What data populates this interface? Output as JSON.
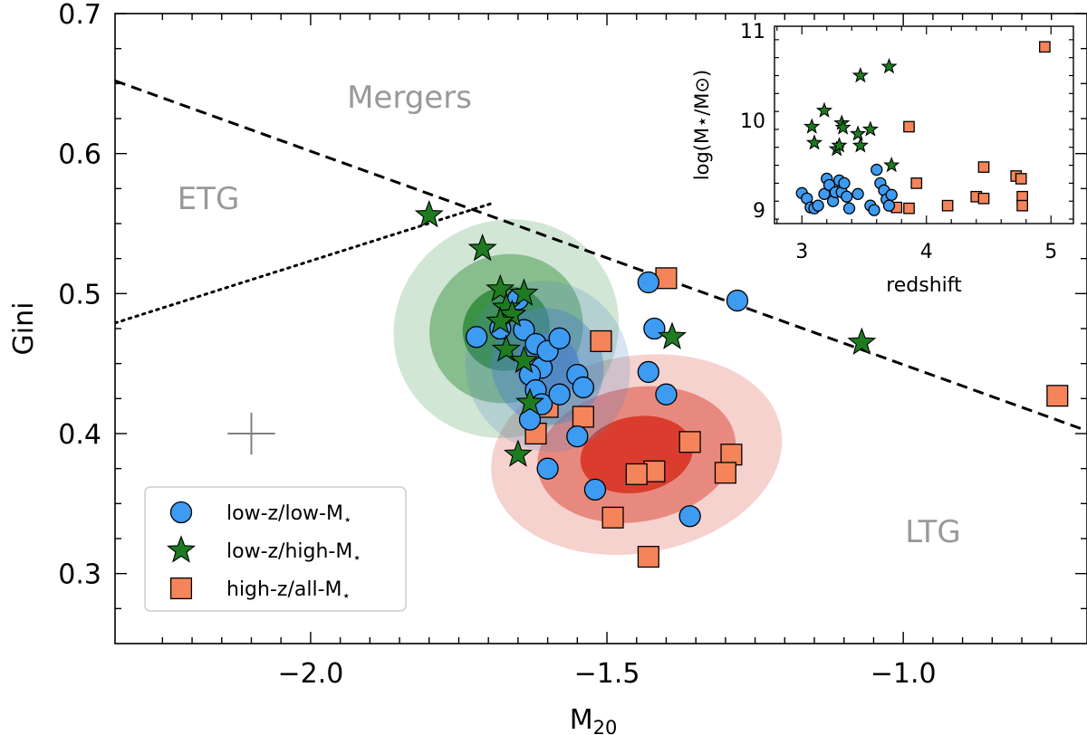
{
  "chart_data": [
    {
      "type": "scatter",
      "xlabel": "M",
      "xlabel_sub": "20",
      "ylabel": "Gini",
      "xlim": [
        -2.33,
        -0.69
      ],
      "ylim": [
        0.25,
        0.7
      ],
      "xticks": [
        "−2.0",
        "−1.5",
        "−1.0"
      ],
      "yticks": [
        "0.3",
        "0.4",
        "0.5",
        "0.6",
        "0.7"
      ],
      "grid": false,
      "legend_position": "lower-left",
      "region_labels": {
        "mergers": "Mergers",
        "etg": "ETG",
        "ltg": "LTG"
      },
      "boundaries": {
        "merger_line": {
          "style": "dashed",
          "x": [
            -2.33,
            -0.69
          ],
          "y": [
            0.652,
            0.402
          ]
        },
        "etg_ltg_line": {
          "style": "dotted",
          "x": [
            -2.33,
            -1.69
          ],
          "y": [
            0.479,
            0.565
          ]
        }
      },
      "error_cross": {
        "x": -2.1,
        "y": 0.4,
        "dx": 0.04,
        "dy": 0.015
      },
      "contours": {
        "low_z_high_m": {
          "color": "#2e8b3a",
          "center": [
            -1.67,
            0.475
          ],
          "sd": [
            0.07,
            0.035
          ],
          "corr": -0.6
        },
        "low_z_low_m": {
          "color": "#4f86c6",
          "center": [
            -1.6,
            0.448
          ],
          "sd": [
            0.05,
            0.028
          ],
          "corr": -0.5
        },
        "high_z": {
          "color": "#d7301f",
          "center": [
            -1.45,
            0.385
          ],
          "sd": [
            0.09,
            0.032
          ],
          "corr": -0.2
        }
      },
      "series": [
        {
          "name": "low-z/low-M",
          "name_sub": "⋆",
          "marker": "circle",
          "color": "#3d9bf2",
          "points": [
            [
              -1.72,
              0.469
            ],
            [
              -1.68,
              0.475
            ],
            [
              -1.65,
              0.496
            ],
            [
              -1.64,
              0.474
            ],
            [
              -1.62,
              0.464
            ],
            [
              -1.61,
              0.447
            ],
            [
              -1.6,
              0.459
            ],
            [
              -1.58,
              0.468
            ],
            [
              -1.63,
              0.442
            ],
            [
              -1.62,
              0.431
            ],
            [
              -1.61,
              0.421
            ],
            [
              -1.58,
              0.428
            ],
            [
              -1.55,
              0.442
            ],
            [
              -1.54,
              0.433
            ],
            [
              -1.63,
              0.41
            ],
            [
              -1.6,
              0.375
            ],
            [
              -1.55,
              0.398
            ],
            [
              -1.52,
              0.36
            ],
            [
              -1.43,
              0.508
            ],
            [
              -1.42,
              0.475
            ],
            [
              -1.43,
              0.444
            ],
            [
              -1.4,
              0.428
            ],
            [
              -1.28,
              0.495
            ],
            [
              -1.36,
              0.341
            ]
          ]
        },
        {
          "name": "low-z/high-M",
          "name_sub": "⋆",
          "marker": "star",
          "color": "#1e7b20",
          "points": [
            [
              -1.8,
              0.556
            ],
            [
              -1.71,
              0.532
            ],
            [
              -1.68,
              0.503
            ],
            [
              -1.64,
              0.5
            ],
            [
              -1.67,
              0.49
            ],
            [
              -1.66,
              0.485
            ],
            [
              -1.68,
              0.48
            ],
            [
              -1.67,
              0.46
            ],
            [
              -1.64,
              0.452
            ],
            [
              -1.63,
              0.422
            ],
            [
              -1.65,
              0.385
            ],
            [
              -1.39,
              0.469
            ],
            [
              -1.07,
              0.465
            ]
          ]
        },
        {
          "name": "high-z/all-M",
          "name_sub": "⋆",
          "marker": "square",
          "color": "#f5845a",
          "points": [
            [
              -1.4,
              0.511
            ],
            [
              -1.51,
              0.466
            ],
            [
              -1.6,
              0.419
            ],
            [
              -1.54,
              0.412
            ],
            [
              -1.62,
              0.4
            ],
            [
              -1.36,
              0.394
            ],
            [
              -1.29,
              0.385
            ],
            [
              -1.42,
              0.373
            ],
            [
              -1.45,
              0.371
            ],
            [
              -1.3,
              0.372
            ],
            [
              -1.49,
              0.34
            ],
            [
              -1.43,
              0.312
            ],
            [
              -0.74,
              0.427
            ]
          ]
        }
      ]
    },
    {
      "type": "scatter",
      "inset": true,
      "xlabel": "redshift",
      "ylabel": "log(M⋆/M⊙)",
      "xlim": [
        2.78,
        5.18
      ],
      "ylim": [
        8.85,
        11.05
      ],
      "xticks": [
        "3",
        "4",
        "5"
      ],
      "yticks": [
        "9",
        "10",
        "11"
      ],
      "series": [
        {
          "name": "low-z/low-M",
          "marker": "circle",
          "color": "#3d9bf2",
          "points": [
            [
              3.0,
              9.19
            ],
            [
              3.04,
              9.13
            ],
            [
              3.07,
              9.03
            ],
            [
              3.1,
              9.02
            ],
            [
              3.13,
              9.05
            ],
            [
              3.18,
              9.18
            ],
            [
              3.2,
              9.35
            ],
            [
              3.22,
              9.28
            ],
            [
              3.25,
              9.1
            ],
            [
              3.27,
              9.2
            ],
            [
              3.3,
              9.33
            ],
            [
              3.32,
              9.2
            ],
            [
              3.34,
              9.3
            ],
            [
              3.36,
              9.15
            ],
            [
              3.38,
              9.02
            ],
            [
              3.45,
              9.18
            ],
            [
              3.55,
              9.05
            ],
            [
              3.6,
              9.45
            ],
            [
              3.63,
              9.3
            ],
            [
              3.66,
              9.22
            ],
            [
              3.68,
              9.12
            ],
            [
              3.7,
              9.05
            ],
            [
              3.72,
              9.17
            ],
            [
              3.58,
              9.0
            ]
          ]
        },
        {
          "name": "low-z/high-M",
          "marker": "star",
          "color": "#1e7b20",
          "points": [
            [
              3.08,
              9.93
            ],
            [
              3.1,
              9.75
            ],
            [
              3.18,
              10.11
            ],
            [
              3.28,
              9.68
            ],
            [
              3.32,
              9.97
            ],
            [
              3.33,
              9.92
            ],
            [
              3.45,
              9.85
            ],
            [
              3.47,
              9.72
            ],
            [
              3.47,
              10.5
            ],
            [
              3.55,
              9.9
            ],
            [
              3.7,
              10.6
            ],
            [
              3.72,
              9.5
            ],
            [
              3.3,
              9.72
            ]
          ]
        },
        {
          "name": "high-z/all-M",
          "marker": "square",
          "color": "#f5845a",
          "points": [
            [
              3.76,
              9.03
            ],
            [
              3.86,
              9.02
            ],
            [
              3.86,
              9.93
            ],
            [
              3.92,
              9.3
            ],
            [
              4.17,
              9.05
            ],
            [
              4.4,
              9.15
            ],
            [
              4.46,
              9.48
            ],
            [
              4.46,
              9.13
            ],
            [
              4.72,
              9.38
            ],
            [
              4.76,
              9.35
            ],
            [
              4.77,
              9.15
            ],
            [
              4.77,
              9.05
            ],
            [
              4.95,
              10.82
            ]
          ]
        }
      ]
    }
  ]
}
